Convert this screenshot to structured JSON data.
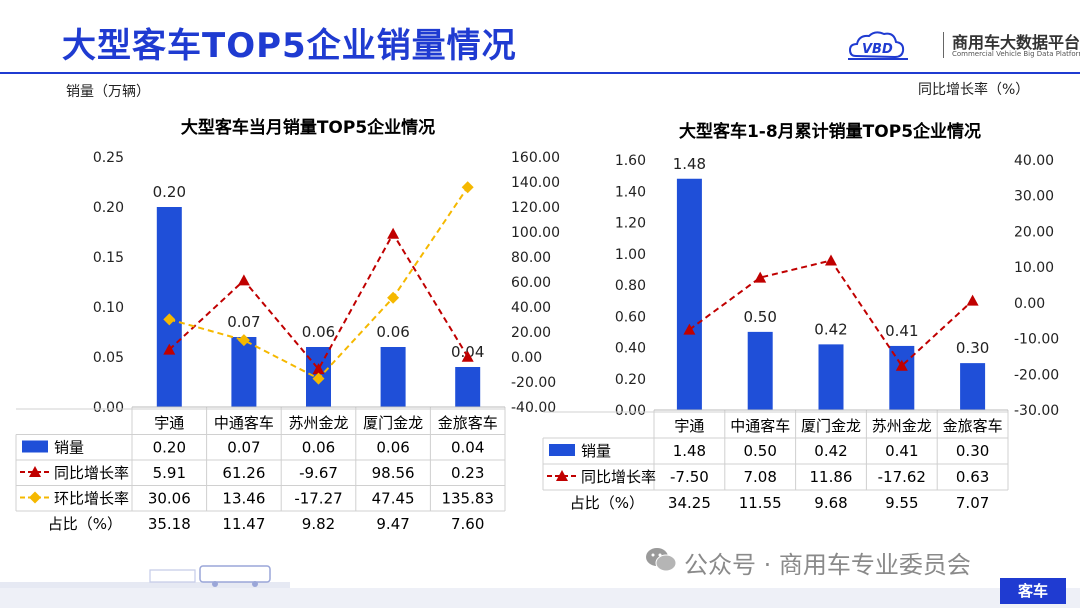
{
  "header": {
    "title": "大型客车TOP5企业销量情况",
    "logo_text": "商用车大数据平台",
    "logo_subtext": "Commercial Vehicle Big Data Platform",
    "logo_badge": "VBD"
  },
  "axis_units": {
    "left": "销量（万辆）",
    "right": "同比增长率（%）"
  },
  "footer": {
    "watermark": "公众号 · 商用车专业委员会",
    "tag": "客车",
    "colors": {
      "brand": "#1f3bd1"
    }
  },
  "colors": {
    "bar": "#1f4fd8",
    "yoy": "#c00000",
    "mom": "#f5b800"
  },
  "chart_data": [
    {
      "type": "bar",
      "title": "大型客车当月销量TOP5企业情况",
      "categories": [
        "宇通",
        "中通客车",
        "苏州金龙",
        "厦门金龙",
        "金旅客车"
      ],
      "series": [
        {
          "name": "销量",
          "kind": "bar",
          "axis": "left",
          "values": [
            0.2,
            0.07,
            0.06,
            0.06,
            0.04
          ],
          "labels": [
            "0.20",
            "0.07",
            "0.06",
            "0.06",
            "0.04"
          ]
        },
        {
          "name": "同比增长率",
          "kind": "line",
          "axis": "right",
          "values": [
            5.91,
            61.26,
            -9.67,
            98.56,
            0.23
          ],
          "labels": [
            "5.91",
            "61.26",
            "-9.67",
            "98.56",
            "0.23"
          ]
        },
        {
          "name": "环比增长率",
          "kind": "line",
          "axis": "right",
          "values": [
            30.06,
            13.46,
            -17.27,
            47.45,
            135.83
          ],
          "labels": [
            "30.06",
            "13.46",
            "-17.27",
            "47.45",
            "135.83"
          ]
        }
      ],
      "extra_rows": [
        {
          "name": "占比（%）",
          "values": [
            "35.18",
            "11.47",
            "9.82",
            "9.47",
            "7.60"
          ]
        }
      ],
      "ylim": [
        0,
        0.25
      ],
      "yticks": [
        "0.00",
        "0.05",
        "0.10",
        "0.15",
        "0.20",
        "0.25"
      ],
      "y2lim": [
        -40,
        160
      ],
      "y2ticks": [
        "-40.00",
        "-20.00",
        "0.00",
        "20.00",
        "40.00",
        "60.00",
        "80.00",
        "100.00",
        "120.00",
        "140.00",
        "160.00"
      ]
    },
    {
      "type": "bar",
      "title": "大型客车1-8月累计销量TOP5企业情况",
      "categories": [
        "宇通",
        "中通客车",
        "厦门金龙",
        "苏州金龙",
        "金旅客车"
      ],
      "series": [
        {
          "name": "销量",
          "kind": "bar",
          "axis": "left",
          "values": [
            1.48,
            0.5,
            0.42,
            0.41,
            0.3
          ],
          "labels": [
            "1.48",
            "0.50",
            "0.42",
            "0.41",
            "0.30"
          ]
        },
        {
          "name": "同比增长率",
          "kind": "line",
          "axis": "right",
          "values": [
            -7.5,
            7.08,
            11.86,
            -17.62,
            0.63
          ],
          "labels": [
            "-7.50",
            "7.08",
            "11.86",
            "-17.62",
            "0.63"
          ]
        }
      ],
      "extra_rows": [
        {
          "name": "占比（%）",
          "values": [
            "34.25",
            "11.55",
            "9.68",
            "9.55",
            "7.07"
          ]
        }
      ],
      "ylim": [
        0,
        1.6
      ],
      "yticks": [
        "0.00",
        "0.20",
        "0.40",
        "0.60",
        "0.80",
        "1.00",
        "1.20",
        "1.40",
        "1.60"
      ],
      "y2lim": [
        -30,
        40
      ],
      "y2ticks": [
        "-30.00",
        "-20.00",
        "-10.00",
        "0.00",
        "10.00",
        "20.00",
        "30.00",
        "40.00"
      ]
    }
  ]
}
